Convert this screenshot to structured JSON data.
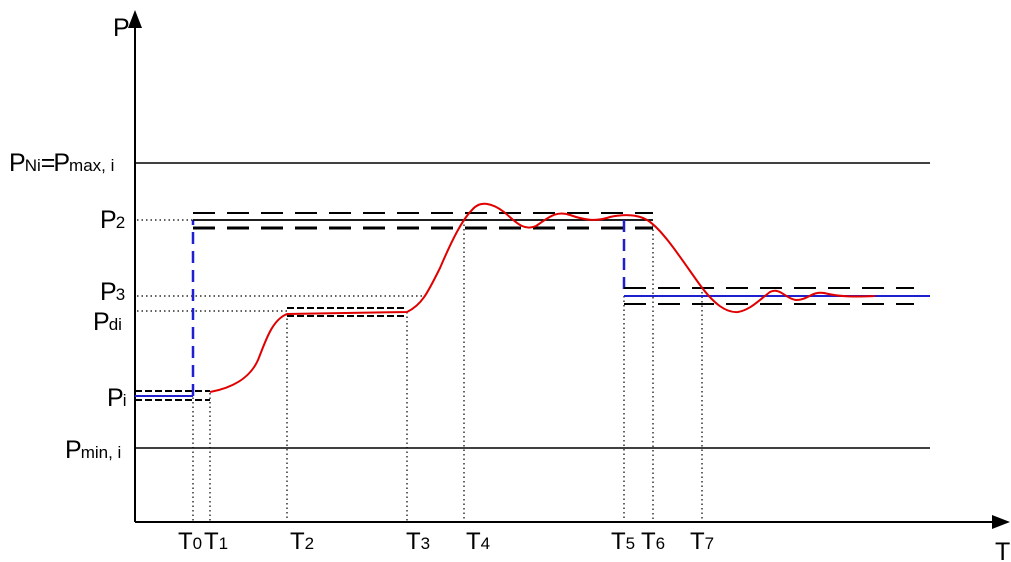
{
  "axes": {
    "y_label": "P",
    "x_label": "T"
  },
  "level_labels": [
    {
      "id": "pni",
      "main": "P",
      "sub": "Ni",
      "main2": "=P",
      "sub2": "max, i"
    },
    {
      "id": "p2",
      "main": "P",
      "sub": "2"
    },
    {
      "id": "p3",
      "main": "P",
      "sub": "3"
    },
    {
      "id": "pdi",
      "main": "P",
      "sub": "di"
    },
    {
      "id": "pi",
      "main": "P",
      "sub": "i"
    },
    {
      "id": "pmin",
      "main": "P",
      "sub": "min, i"
    }
  ],
  "time_labels": [
    {
      "main": "T",
      "sub": "0"
    },
    {
      "main": "T",
      "sub": "1"
    },
    {
      "main": "T",
      "sub": "2"
    },
    {
      "main": "T",
      "sub": "3"
    },
    {
      "main": "T",
      "sub": "4"
    },
    {
      "main": "T",
      "sub": "5"
    },
    {
      "main": "T",
      "sub": "6"
    },
    {
      "main": "T",
      "sub": "7"
    }
  ],
  "colors": {
    "axis": "#000000",
    "response_curve": "#e00000",
    "setpoint": "#1f1fcf",
    "tolerance_band": "#000000",
    "guide": "#000000"
  }
}
